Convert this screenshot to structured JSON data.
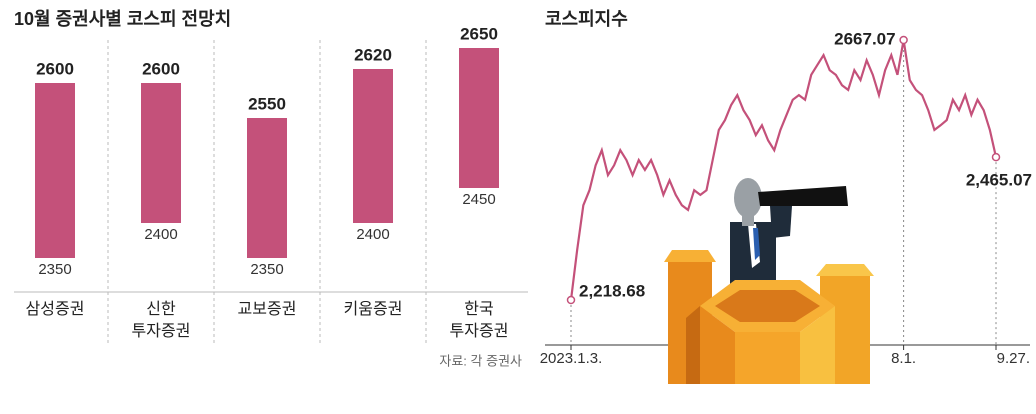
{
  "chart_data": [
    {
      "type": "range_bar",
      "title": "10월 증권사별 코스피 전망치",
      "categories": [
        "삼성증권",
        "신한\n투자증권",
        "교보증권",
        "키움증권",
        "한국\n투자증권"
      ],
      "low": [
        2350,
        2400,
        2350,
        2400,
        2450
      ],
      "high": [
        2600,
        2600,
        2550,
        2620,
        2650
      ],
      "color": "#c4517a",
      "source": "자료: 각 증권사"
    },
    {
      "type": "line",
      "title": "코스피지수",
      "color": "#c4517a",
      "categories": [
        "2023.1.3.",
        null,
        null,
        null,
        null,
        null,
        null,
        null,
        null,
        null,
        null,
        null,
        null,
        null,
        null,
        null,
        null,
        null,
        null,
        null,
        null,
        null,
        null,
        null,
        null,
        null,
        null,
        null,
        null,
        null,
        null,
        null,
        null,
        null,
        null,
        null,
        null,
        null,
        null,
        null,
        null,
        null,
        null,
        null,
        null,
        null,
        null,
        null,
        null,
        null,
        null,
        null,
        null,
        null,
        "8.1.",
        null,
        null,
        null,
        null,
        null,
        null,
        null,
        null,
        null,
        null,
        null,
        null,
        null,
        null,
        "9.27."
      ],
      "values": [
        2218.68,
        2305,
        2382,
        2408,
        2451,
        2477,
        2434,
        2451,
        2477,
        2460,
        2434,
        2460,
        2443,
        2460,
        2434,
        2400,
        2425,
        2400,
        2382,
        2374,
        2408,
        2400,
        2408,
        2460,
        2512,
        2529,
        2555,
        2572,
        2546,
        2529,
        2503,
        2520,
        2494,
        2477,
        2512,
        2538,
        2564,
        2572,
        2564,
        2607,
        2624,
        2641,
        2615,
        2607,
        2589,
        2581,
        2615,
        2598,
        2632,
        2607,
        2572,
        2615,
        2641,
        2607,
        2667.07,
        2598,
        2581,
        2572,
        2546,
        2512,
        2520,
        2529,
        2564,
        2546,
        2572,
        2538,
        2564,
        2546,
        2512,
        2465.07
      ],
      "value_labels": [
        "2,218.68",
        null,
        null,
        null,
        null,
        null,
        null,
        null,
        null,
        null,
        null,
        null,
        null,
        null,
        null,
        null,
        null,
        null,
        null,
        null,
        null,
        null,
        null,
        null,
        null,
        null,
        null,
        null,
        null,
        null,
        null,
        null,
        null,
        null,
        null,
        null,
        null,
        null,
        null,
        null,
        null,
        null,
        null,
        null,
        null,
        null,
        null,
        null,
        null,
        null,
        null,
        null,
        null,
        null,
        "2667.07",
        null,
        null,
        null,
        null,
        null,
        null,
        null,
        null,
        null,
        null,
        null,
        null,
        null,
        null,
        "2,465.07"
      ]
    }
  ]
}
